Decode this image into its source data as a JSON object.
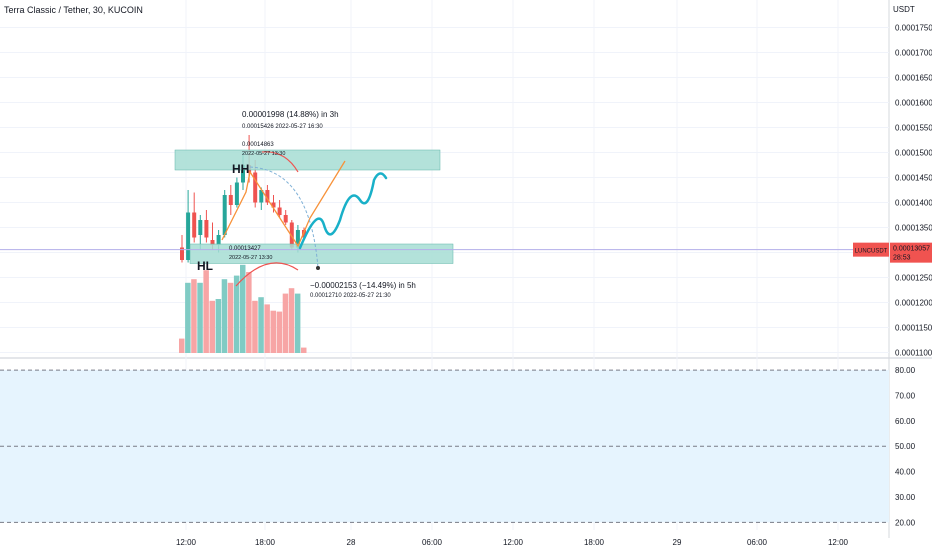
{
  "header": {
    "symbol_title": "Terra Classic / Tether, 30, KUCOIN",
    "currency": "USDT"
  },
  "colors": {
    "up": "#26a69a",
    "down": "#ef5350",
    "vol_up": "#80cbc4",
    "vol_down": "#f7a5a5",
    "zone": "#a6ddd3",
    "zone_border": "#5fb6a8",
    "proj": "#f7923a",
    "path": "#19b0c8",
    "arc": "#7fb0d6",
    "badge": "#f05350",
    "rsi_bg": "#e6f4fe"
  },
  "chart_data": {
    "type": "candlestick",
    "price_axis": {
      "ylim": [
        0.0001095,
        0.0001805
      ],
      "ticks": [
        "0.00011000",
        "0.00011500",
        "0.00012000",
        "0.00012500",
        "0.00013000",
        "0.00013500",
        "0.00014000",
        "0.00014500",
        "0.00015000",
        "0.00015500",
        "0.00016000",
        "0.00016500",
        "0.00017000",
        "0.00017500"
      ]
    },
    "time_axis": {
      "ticks": [
        "12:00",
        "18:00",
        "28",
        "06:00",
        "12:00",
        "18:00",
        "29",
        "06:00",
        "12:00"
      ]
    },
    "candles": [
      {
        "o": 0.000131,
        "h": 0.0001335,
        "l": 0.000128,
        "c": 0.0001285
      },
      {
        "o": 0.0001285,
        "h": 0.0001425,
        "l": 0.000128,
        "c": 0.000138
      },
      {
        "o": 0.000138,
        "h": 0.000142,
        "l": 0.000132,
        "c": 0.000133
      },
      {
        "o": 0.0001335,
        "h": 0.0001375,
        "l": 0.0001305,
        "c": 0.0001365
      },
      {
        "o": 0.0001365,
        "h": 0.0001385,
        "l": 0.000132,
        "c": 0.000133
      },
      {
        "o": 0.0001325,
        "h": 0.000136,
        "l": 0.0001305,
        "c": 0.0001315
      },
      {
        "o": 0.0001315,
        "h": 0.0001345,
        "l": 0.00013,
        "c": 0.0001335
      },
      {
        "o": 0.0001335,
        "h": 0.0001425,
        "l": 0.000133,
        "c": 0.0001415
      },
      {
        "o": 0.0001415,
        "h": 0.0001435,
        "l": 0.0001375,
        "c": 0.0001395
      },
      {
        "o": 0.0001395,
        "h": 0.000145,
        "l": 0.000139,
        "c": 0.000144
      },
      {
        "o": 0.000144,
        "h": 0.00015,
        "l": 0.0001425,
        "c": 0.0001475
      },
      {
        "o": 0.0001475,
        "h": 0.0001535,
        "l": 0.000144,
        "c": 0.000146
      },
      {
        "o": 0.000146,
        "h": 0.0001485,
        "l": 0.000139,
        "c": 0.00014
      },
      {
        "o": 0.00014,
        "h": 0.000143,
        "l": 0.0001385,
        "c": 0.0001425
      },
      {
        "o": 0.0001425,
        "h": 0.0001435,
        "l": 0.0001395,
        "c": 0.00014
      },
      {
        "o": 0.00014,
        "h": 0.0001415,
        "l": 0.000138,
        "c": 0.000139
      },
      {
        "o": 0.000139,
        "h": 0.0001405,
        "l": 0.000137,
        "c": 0.0001375
      },
      {
        "o": 0.0001375,
        "h": 0.0001385,
        "l": 0.0001355,
        "c": 0.000136
      },
      {
        "o": 0.000136,
        "h": 0.0001365,
        "l": 0.0001305,
        "c": 0.000131
      },
      {
        "o": 0.000131,
        "h": 0.0001355,
        "l": 0.00013,
        "c": 0.0001345
      },
      {
        "o": 0.0001345,
        "h": 0.000135,
        "l": 0.0001325,
        "c": 0.000133
      }
    ],
    "volume_scale_max": 1.0,
    "volume": [
      0.16,
      0.78,
      0.82,
      0.78,
      0.92,
      0.58,
      0.6,
      0.82,
      0.78,
      0.86,
      0.98,
      0.9,
      0.58,
      0.62,
      0.54,
      0.47,
      0.46,
      0.66,
      0.72,
      0.66,
      0.06
    ],
    "zones": [
      {
        "top": 0.0001505,
        "bottom": 0.0001465
      },
      {
        "top": 0.0001317,
        "bottom": 0.0001278
      }
    ],
    "last_price": {
      "symbol": "LUNCUSDT",
      "price": "0.00013057",
      "timer": "28:53",
      "value": 0.00013057
    },
    "annotations": {
      "measure_up": {
        "main": "0.00001998 (14.88%) in 3h",
        "sub": "0.00015426   2022-05-27  16:30"
      },
      "hh_label": "HH",
      "hh_price": "0.00014863",
      "hh_date": "2022-05-27 13:30",
      "hl_label": "HL",
      "hl_price": "0.00013427",
      "hl_date": "2022-05-27 13:30",
      "measure_down": {
        "main": "−0.00002153 (−14.49%) in 5h",
        "sub": "0.00012710   2022-05-27  21:30"
      }
    },
    "rsi": {
      "ylim": [
        17,
        82
      ],
      "ticks": [
        "80.00",
        "70.00",
        "60.00",
        "50.00",
        "40.00",
        "30.00",
        "20.00"
      ],
      "bands": [
        80,
        50,
        20
      ]
    }
  }
}
